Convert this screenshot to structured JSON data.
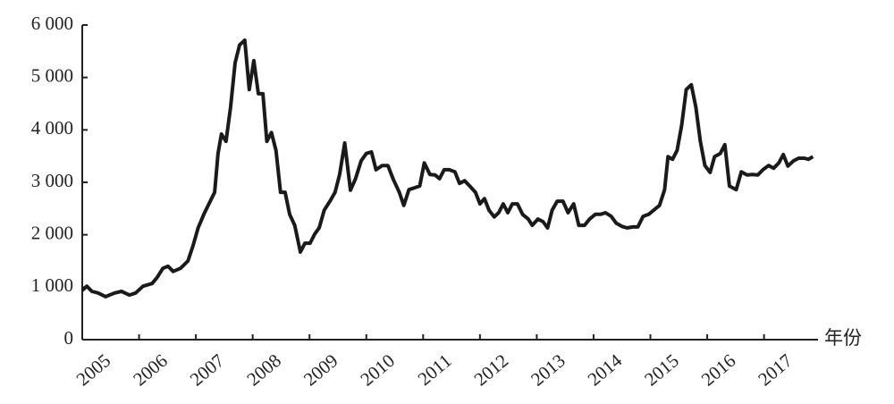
{
  "chart_data": {
    "type": "line",
    "x_label": "年份",
    "color": "#1a1a1a",
    "x": [
      2005.0,
      2005.08,
      2005.17,
      2005.28,
      2005.41,
      2005.57,
      2005.69,
      2005.83,
      2005.94,
      2006.07,
      2006.23,
      2006.32,
      2006.42,
      2006.51,
      2006.6,
      2006.73,
      2006.86,
      2006.95,
      2007.04,
      2007.14,
      2007.23,
      2007.33,
      2007.39,
      2007.45,
      2007.53,
      2007.61,
      2007.69,
      2007.77,
      2007.86,
      2007.94,
      2008.02,
      2008.1,
      2008.18,
      2008.25,
      2008.33,
      2008.41,
      2008.49,
      2008.57,
      2008.65,
      2008.74,
      2008.84,
      2008.92,
      2009.01,
      2009.09,
      2009.17,
      2009.26,
      2009.36,
      2009.45,
      2009.53,
      2009.62,
      2009.72,
      2009.81,
      2009.91,
      2010.0,
      2010.09,
      2010.17,
      2010.28,
      2010.38,
      2010.47,
      2010.58,
      2010.66,
      2010.75,
      2010.86,
      2010.94,
      2011.02,
      2011.12,
      2011.21,
      2011.29,
      2011.37,
      2011.46,
      2011.56,
      2011.64,
      2011.73,
      2011.82,
      2011.92,
      2012.0,
      2012.08,
      2012.16,
      2012.25,
      2012.33,
      2012.41,
      2012.49,
      2012.57,
      2012.66,
      2012.75,
      2012.85,
      2012.92,
      2013.02,
      2013.11,
      2013.19,
      2013.27,
      2013.36,
      2013.46,
      2013.55,
      2013.65,
      2013.74,
      2013.84,
      2013.93,
      2014.03,
      2014.12,
      2014.21,
      2014.31,
      2014.4,
      2014.5,
      2014.59,
      2014.69,
      2014.78,
      2014.87,
      2014.97,
      2015.06,
      2015.16,
      2015.25,
      2015.31,
      2015.39,
      2015.47,
      2015.55,
      2015.63,
      2015.72,
      2015.8,
      2015.88,
      2015.96,
      2016.05,
      2016.13,
      2016.23,
      2016.31,
      2016.39,
      2016.51,
      2016.6,
      2016.7,
      2016.79,
      2016.89,
      2016.98,
      2017.08,
      2017.17,
      2017.26,
      2017.34,
      2017.42,
      2017.52,
      2017.61,
      2017.71,
      2017.78,
      2017.86
    ],
    "values": [
      940,
      1020,
      920,
      890,
      820,
      890,
      920,
      850,
      890,
      1020,
      1070,
      1190,
      1360,
      1400,
      1300,
      1360,
      1500,
      1790,
      2130,
      2390,
      2590,
      2810,
      3550,
      3920,
      3780,
      4430,
      5280,
      5620,
      5710,
      4770,
      5320,
      4690,
      4690,
      3780,
      3950,
      3610,
      2810,
      2810,
      2390,
      2180,
      1670,
      1840,
      1840,
      2010,
      2130,
      2470,
      2640,
      2810,
      3150,
      3750,
      2850,
      3070,
      3410,
      3550,
      3580,
      3240,
      3320,
      3320,
      3070,
      2810,
      2560,
      2860,
      2900,
      2930,
      3370,
      3150,
      3140,
      3070,
      3240,
      3240,
      3200,
      2980,
      3030,
      2930,
      2810,
      2590,
      2690,
      2470,
      2340,
      2420,
      2590,
      2420,
      2590,
      2590,
      2390,
      2300,
      2180,
      2300,
      2250,
      2130,
      2470,
      2640,
      2640,
      2420,
      2590,
      2180,
      2180,
      2300,
      2390,
      2390,
      2420,
      2350,
      2220,
      2160,
      2130,
      2150,
      2150,
      2350,
      2390,
      2470,
      2560,
      2860,
      3490,
      3440,
      3610,
      4090,
      4770,
      4860,
      4430,
      3780,
      3320,
      3190,
      3490,
      3550,
      3720,
      2930,
      2860,
      3200,
      3140,
      3150,
      3140,
      3240,
      3320,
      3270,
      3370,
      3530,
      3310,
      3410,
      3460,
      3460,
      3440,
      3490
    ],
    "xlim": [
      2005,
      2017.95
    ],
    "xticks": [
      2005,
      2006,
      2007,
      2008,
      2009,
      2010,
      2011,
      2012,
      2013,
      2014,
      2015,
      2016,
      2017
    ],
    "ylim": [
      0,
      6000
    ],
    "yticks": [
      0,
      {
        "value": 1000,
        "label": "1 000"
      },
      {
        "value": 2000,
        "label": "2 000"
      },
      {
        "value": 3000,
        "label": "3 000"
      },
      {
        "value": 4000,
        "label": "4 000"
      },
      {
        "value": 5000,
        "label": "5 000"
      },
      {
        "value": 6000,
        "label": "6 000"
      }
    ]
  }
}
